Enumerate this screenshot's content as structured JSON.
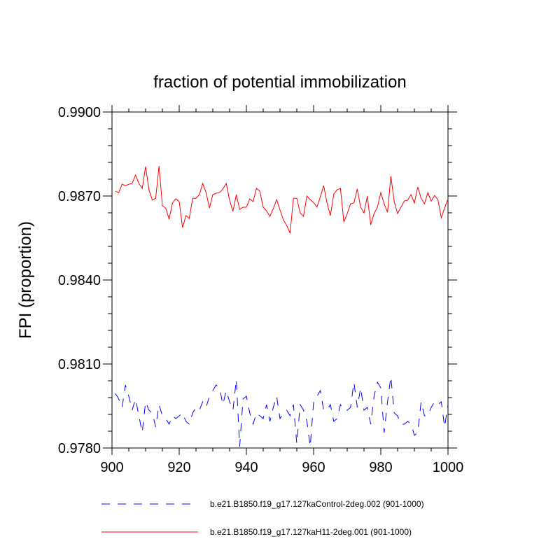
{
  "chart_data": {
    "type": "line",
    "title": "fraction of potential immobilization",
    "xlabel": "",
    "ylabel": "FPI  (proportion)",
    "xlim": [
      900,
      1000
    ],
    "ylim": [
      0.978,
      0.99
    ],
    "x_ticks": [
      "900",
      "920",
      "940",
      "960",
      "980",
      "1000"
    ],
    "y_ticks": [
      "0.9780",
      "0.9810",
      "0.9840",
      "0.9870",
      "0.9900"
    ],
    "x_tick_values": [
      900,
      920,
      940,
      960,
      980,
      1000
    ],
    "y_tick_values": [
      0.978,
      0.981,
      0.984,
      0.987,
      0.99
    ],
    "legend_position": "bottom",
    "series": [
      {
        "name": "b.e21.B1850.f19_g17.127kaControl-2deg.002 (901-1000)",
        "color": "#0000ff",
        "dash": "dashed",
        "x": [
          901,
          902,
          903,
          904,
          905,
          906,
          907,
          908,
          909,
          910,
          911,
          912,
          913,
          914,
          915,
          916,
          917,
          918,
          919,
          920,
          921,
          922,
          923,
          924,
          925,
          926,
          927,
          928,
          929,
          930,
          931,
          932,
          933,
          934,
          935,
          936,
          937,
          938,
          939,
          940,
          941,
          942,
          943,
          944,
          945,
          946,
          947,
          948,
          949,
          950,
          951,
          952,
          953,
          954,
          955,
          956,
          957,
          958,
          959,
          960,
          961,
          962,
          963,
          964,
          965,
          966,
          967,
          968,
          969,
          970,
          971,
          972,
          973,
          974,
          975,
          976,
          977,
          978,
          979,
          980,
          981,
          982,
          983,
          984,
          985,
          986,
          987,
          988,
          989,
          990,
          991,
          992,
          993,
          994,
          995,
          996,
          997,
          998,
          999,
          1000
        ],
        "values": [
          0.97995,
          0.97975,
          0.97945,
          0.98025,
          0.97985,
          0.97935,
          0.97975,
          0.97915,
          0.97855,
          0.97965,
          0.97935,
          0.97925,
          0.97875,
          0.97955,
          0.97915,
          0.97905,
          0.97885,
          0.97915,
          0.97905,
          0.97915,
          0.97925,
          0.97895,
          0.97885,
          0.97925,
          0.97945,
          0.97935,
          0.97965,
          0.97945,
          0.97985,
          0.98005,
          0.98025,
          0.98015,
          0.97955,
          0.98005,
          0.97965,
          0.97935,
          0.98045,
          0.97805,
          0.97975,
          0.97985,
          0.97925,
          0.97885,
          0.97925,
          0.97915,
          0.97905,
          0.97955,
          0.97895,
          0.97945,
          0.97985,
          0.97905,
          0.97925,
          0.97935,
          0.97915,
          0.97955,
          0.97815,
          0.97955,
          0.97935,
          0.97895,
          0.97805,
          0.97965,
          0.97985,
          0.98005,
          0.97935,
          0.97935,
          0.97955,
          0.97895,
          0.97905,
          0.97955,
          0.97935,
          0.97935,
          0.97945,
          0.98035,
          0.97945,
          0.98015,
          0.97935,
          0.97945,
          0.97885,
          0.97985,
          0.98035,
          0.98015,
          0.97855,
          0.97965,
          0.98055,
          0.97925,
          0.97915,
          0.97885,
          0.97885,
          0.97895,
          0.97885,
          0.97845,
          0.97855,
          0.97965,
          0.97915,
          0.97915,
          0.97945,
          0.97965,
          0.97955,
          0.97965,
          0.97875,
          0.97955
        ]
      },
      {
        "name": "b.e21.B1850.f19_g17.127kaH11-2deg.001 (901-1000)",
        "color": "#ff0000",
        "dash": "solid",
        "x": [
          901,
          902,
          903,
          904,
          905,
          906,
          907,
          908,
          909,
          910,
          911,
          912,
          913,
          914,
          915,
          916,
          917,
          918,
          919,
          920,
          921,
          922,
          923,
          924,
          925,
          926,
          927,
          928,
          929,
          930,
          931,
          932,
          933,
          934,
          935,
          936,
          937,
          938,
          939,
          940,
          941,
          942,
          943,
          944,
          945,
          946,
          947,
          948,
          949,
          950,
          951,
          952,
          953,
          954,
          955,
          956,
          957,
          958,
          959,
          960,
          961,
          962,
          963,
          964,
          965,
          966,
          967,
          968,
          969,
          970,
          971,
          972,
          973,
          974,
          975,
          976,
          977,
          978,
          979,
          980,
          981,
          982,
          983,
          984,
          985,
          986,
          987,
          988,
          989,
          990,
          991,
          992,
          993,
          994,
          995,
          996,
          997,
          998,
          999,
          1000
        ],
        "values": [
          0.98717,
          0.98712,
          0.98742,
          0.98737,
          0.98742,
          0.98745,
          0.98775,
          0.98745,
          0.98727,
          0.98805,
          0.98722,
          0.98685,
          0.98692,
          0.98807,
          0.98665,
          0.98657,
          0.98617,
          0.98675,
          0.9869,
          0.9868,
          0.98587,
          0.9863,
          0.9862,
          0.98692,
          0.98692,
          0.98705,
          0.98745,
          0.98712,
          0.98657,
          0.98705,
          0.9871,
          0.98712,
          0.98725,
          0.98745,
          0.98685,
          0.98645,
          0.98705,
          0.98652,
          0.9866,
          0.9866,
          0.9869,
          0.9868,
          0.98727,
          0.98717,
          0.9866,
          0.98647,
          0.98627,
          0.98655,
          0.98687,
          0.9865,
          0.98615,
          0.98595,
          0.98567,
          0.98692,
          0.98692,
          0.9864,
          0.98627,
          0.987,
          0.98687,
          0.98677,
          0.9866,
          0.98697,
          0.98737,
          0.98675,
          0.9863,
          0.98707,
          0.98722,
          0.98727,
          0.98607,
          0.98637,
          0.98672,
          0.98675,
          0.98725,
          0.9866,
          0.9864,
          0.987,
          0.98597,
          0.98637,
          0.9866,
          0.98712,
          0.98672,
          0.98642,
          0.9877,
          0.9868,
          0.98637,
          0.9866,
          0.98682,
          0.98685,
          0.98705,
          0.98675,
          0.98732,
          0.98692,
          0.98672,
          0.98712,
          0.98682,
          0.98702,
          0.98687,
          0.98622,
          0.98657,
          0.9869
        ]
      }
    ]
  }
}
